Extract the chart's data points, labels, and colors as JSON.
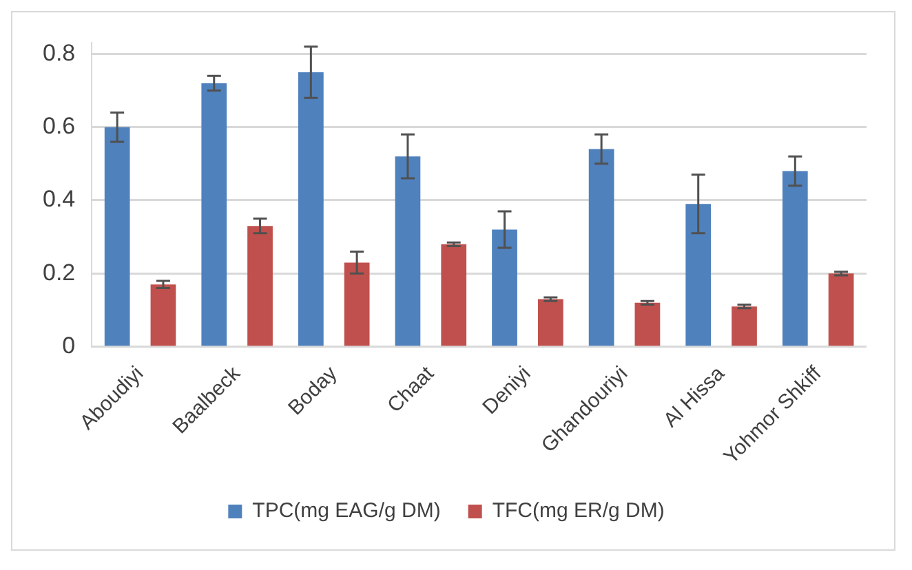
{
  "chart_data": {
    "type": "bar",
    "categories": [
      "Aboudiyi",
      "Baalbeck",
      "Boday",
      "Chaat",
      "Deniyi",
      "Ghandouriyi",
      "Al Hissa",
      "Yohmor Shkiff"
    ],
    "series": [
      {
        "name": "TPC(mg EAG/g DM)",
        "color": "#4f81bd",
        "values": [
          0.6,
          0.72,
          0.75,
          0.52,
          0.32,
          0.54,
          0.39,
          0.48
        ],
        "errors": [
          0.04,
          0.02,
          0.07,
          0.06,
          0.05,
          0.04,
          0.08,
          0.04
        ]
      },
      {
        "name": "TFC(mg ER/g DM)",
        "color": "#c0504d",
        "values": [
          0.17,
          0.33,
          0.23,
          0.28,
          0.13,
          0.12,
          0.11,
          0.2
        ],
        "errors": [
          0.01,
          0.02,
          0.03,
          0.005,
          0.005,
          0.005,
          0.005,
          0.005
        ]
      }
    ],
    "ylim": [
      0,
      0.83
    ],
    "yticks": [
      0,
      0.2,
      0.4,
      0.6,
      0.8
    ],
    "grid": "y",
    "legend": "bottom"
  }
}
